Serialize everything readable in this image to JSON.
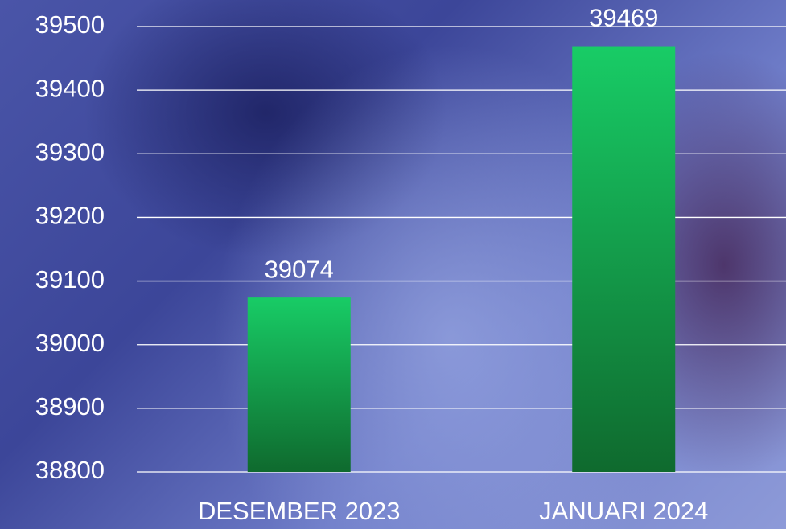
{
  "chart_data": {
    "type": "bar",
    "categories": [
      "DESEMBER 2023",
      "JANUARI 2024"
    ],
    "values": [
      39074,
      39469
    ],
    "color": "#18cc66",
    "ylim": [
      38800,
      39500
    ],
    "yticks": [
      38800,
      38900,
      39000,
      39100,
      39200,
      39300,
      39400,
      39500
    ],
    "grid": true
  }
}
